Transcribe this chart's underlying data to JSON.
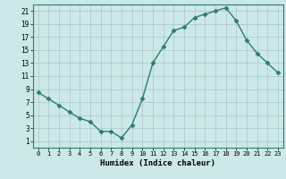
{
  "x": [
    0,
    1,
    2,
    3,
    4,
    5,
    6,
    7,
    8,
    9,
    10,
    11,
    12,
    13,
    14,
    15,
    16,
    17,
    18,
    19,
    20,
    21,
    22,
    23
  ],
  "y": [
    8.5,
    7.5,
    6.5,
    5.5,
    4.5,
    4.0,
    2.5,
    2.5,
    1.5,
    3.5,
    7.5,
    13.0,
    15.5,
    18.0,
    18.5,
    20.0,
    20.5,
    21.0,
    21.5,
    19.5,
    16.5,
    14.5,
    13.0,
    11.5
  ],
  "xlabel": "Humidex (Indice chaleur)",
  "xlim": [
    -0.5,
    23.5
  ],
  "ylim": [
    0,
    22
  ],
  "yticks": [
    1,
    3,
    5,
    7,
    9,
    11,
    13,
    15,
    17,
    19,
    21
  ],
  "xticks": [
    0,
    1,
    2,
    3,
    4,
    5,
    6,
    7,
    8,
    9,
    10,
    11,
    12,
    13,
    14,
    15,
    16,
    17,
    18,
    19,
    20,
    21,
    22,
    23
  ],
  "line_color": "#2e7d6e",
  "marker": "D",
  "marker_size": 2.5,
  "bg_color": "#cce8e8",
  "grid_color": "#aac8c8",
  "spine_color": "#2e7d6e"
}
